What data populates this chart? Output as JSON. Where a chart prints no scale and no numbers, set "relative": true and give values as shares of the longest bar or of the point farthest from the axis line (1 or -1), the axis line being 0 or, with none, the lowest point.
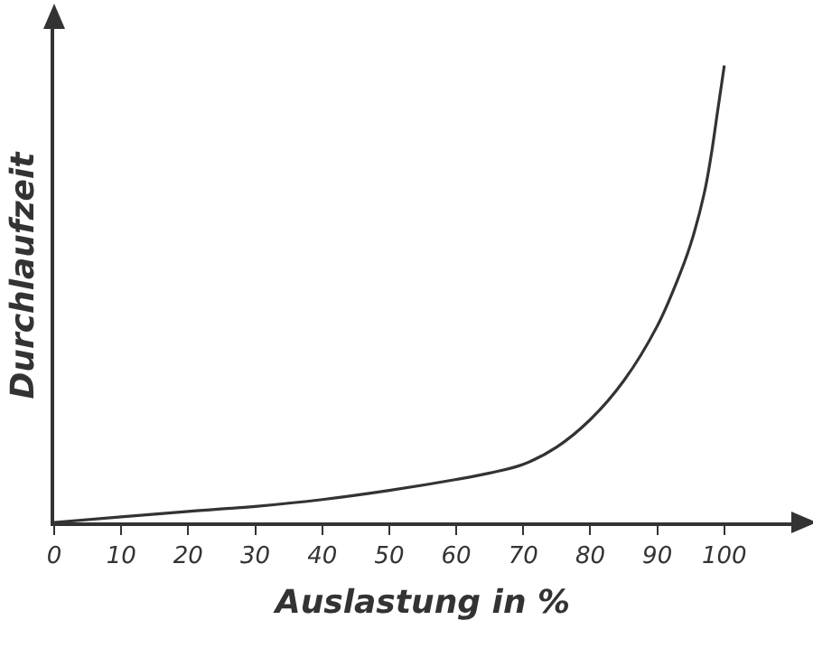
{
  "chart_data": {
    "type": "line",
    "relative": true,
    "xlabel": "Auslastung in %",
    "ylabel": "Durchlaufzeit",
    "x": [
      0,
      10,
      20,
      30,
      40,
      50,
      60,
      65,
      70,
      75,
      80,
      85,
      90,
      93,
      95,
      97,
      98,
      99,
      100
    ],
    "series": [
      {
        "color": "#333333",
        "values": [
          0,
          0.012,
          0.024,
          0.035,
          0.05,
          0.07,
          0.094,
          0.108,
          0.127,
          0.165,
          0.225,
          0.31,
          0.43,
          0.53,
          0.61,
          0.72,
          0.8,
          0.9,
          1
        ]
      }
    ],
    "xlim": [
      0,
      110
    ],
    "xticks": [
      0,
      10,
      20,
      30,
      40,
      50,
      60,
      70,
      80,
      90,
      100
    ],
    "grid": false,
    "marker": "none",
    "line_style": "solid"
  }
}
